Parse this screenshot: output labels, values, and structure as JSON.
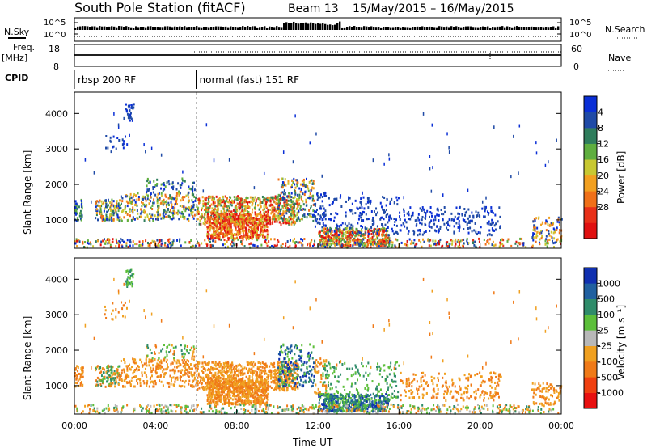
{
  "header": {
    "station": "South Pole Station (fitACF)",
    "beam": "Beam 13",
    "dates": "15/May/2015 – 16/May/2015"
  },
  "panels": {
    "nsky_label": "N.Sky",
    "nsky_tick_top": "10^5",
    "nsky_tick_bottom": "10^0",
    "nsearch_label": "N.Search",
    "nsearch_tick_top": "10^5",
    "nsearch_tick_bottom": "10^0",
    "freq_label": "Freq.",
    "freq_unit": "[MHz]",
    "freq_tick_top": "18",
    "freq_tick_bottom": "8",
    "nave_label": "Nave",
    "nave_tick_top": "60",
    "nave_tick_bottom": "0",
    "cpid_label": "CPID",
    "cpid_modes": [
      {
        "label": "rbsp 200 RF",
        "start_hour": 0
      },
      {
        "label": "normal (fast) 151 RF",
        "start_hour": 6
      }
    ]
  },
  "chart_data": [
    {
      "type": "heatmap",
      "name": "power",
      "ylabel": "Slant Range [km]",
      "ylim": [
        200,
        4600
      ],
      "yticks": [
        1000,
        2000,
        3000,
        4000
      ],
      "colorbar": {
        "label": "Power [dB]",
        "ticks": [
          "4",
          "8",
          "12",
          "16",
          "20",
          "24",
          "28"
        ],
        "colors": [
          "#0a2fd6",
          "#1f4aa6",
          "#2f7d5c",
          "#5fae3f",
          "#c8c832",
          "#f2a020",
          "#f07018",
          "#e83018",
          "#e01010"
        ]
      }
    },
    {
      "type": "heatmap",
      "name": "velocity",
      "ylabel": "Slant Range [km]",
      "xlabel": "Time UT",
      "ylim": [
        200,
        4600
      ],
      "yticks": [
        1000,
        2000,
        3000,
        4000
      ],
      "xlim_hours": [
        0,
        24
      ],
      "xticks": [
        "00:00",
        "04:00",
        "08:00",
        "12:00",
        "16:00",
        "20:00",
        "00:00"
      ],
      "colorbar": {
        "label": "Velocity [m s⁻¹]",
        "ticks": [
          "1000",
          "500",
          "100",
          "25",
          "-25",
          "-100",
          "-500",
          "-1000"
        ],
        "colors": [
          "#1030b0",
          "#2060a0",
          "#2f8c6a",
          "#5cbf3a",
          "#b8b8b8",
          "#f0a020",
          "#f07a18",
          "#f04010",
          "#e81010"
        ]
      }
    }
  ]
}
